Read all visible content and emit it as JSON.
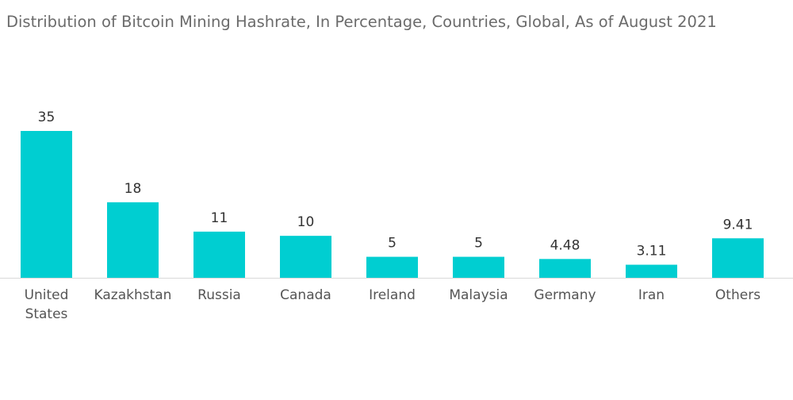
{
  "colors": {
    "bar": "#00CED1",
    "title": "#6b6b6b",
    "value_label": "#333333",
    "category_label": "#555555",
    "axis": "#d9d9d9"
  },
  "chart_data": {
    "type": "bar",
    "title": "Distribution of Bitcoin Mining Hashrate, In Percentage, Countries, Global, As of August 2021",
    "xlabel": "",
    "ylabel": "",
    "categories": [
      "United States",
      "Kazakhstan",
      "Russia",
      "Canada",
      "Ireland",
      "Malaysia",
      "Germany",
      "Iran",
      "Others"
    ],
    "values": [
      35,
      18,
      11,
      10,
      5,
      5,
      4.48,
      3.11,
      9.41
    ],
    "value_labels": [
      "35",
      "18",
      "11",
      "10",
      "5",
      "5",
      "4.48",
      "3.11",
      "9.41"
    ],
    "ylim": [
      0,
      35
    ],
    "grid": false,
    "legend": "none"
  }
}
